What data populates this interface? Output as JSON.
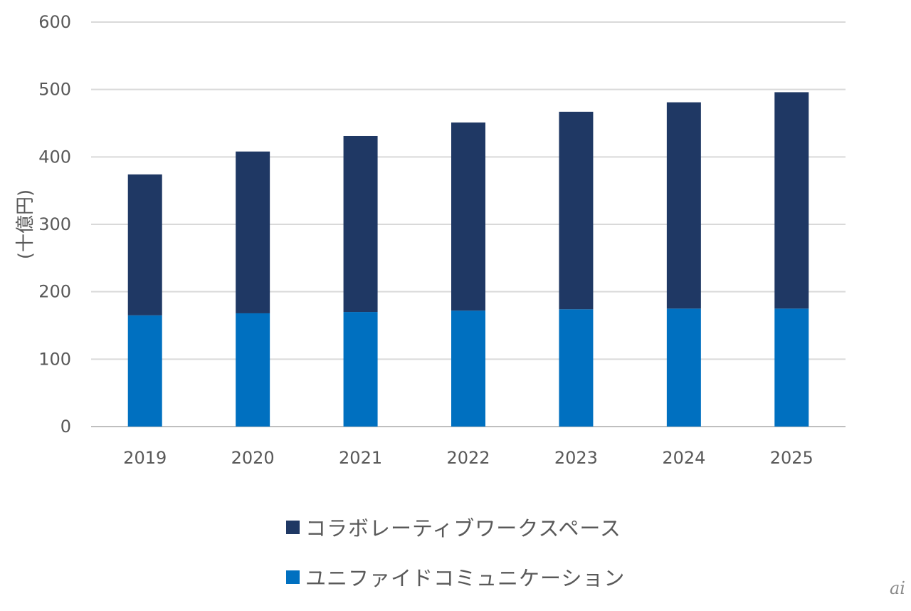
{
  "chart_data": {
    "type": "bar",
    "stacked": true,
    "categories": [
      "2019",
      "2020",
      "2021",
      "2022",
      "2023",
      "2024",
      "2025"
    ],
    "series": [
      {
        "name": "ユニファイドコミュニケーション",
        "color": "#0070c0",
        "values": [
          165,
          168,
          170,
          172,
          174,
          175,
          175
        ]
      },
      {
        "name": "コラボレーティブワークスペース",
        "color": "#1f3864",
        "values": [
          209,
          240,
          261,
          279,
          293,
          306,
          321
        ]
      }
    ],
    "ylabel": "(十億円)",
    "ylim": [
      0,
      600
    ],
    "yticks": [
      0,
      100,
      200,
      300,
      400,
      500,
      600
    ],
    "grid": true,
    "legend_position": "bottom"
  },
  "legend": {
    "items": [
      {
        "label": "コラボレーティブワークスペース",
        "color": "#1f3864"
      },
      {
        "label": "ユニファイドコミュニケーション",
        "color": "#0070c0"
      }
    ]
  },
  "watermark": {
    "text": "ai"
  }
}
